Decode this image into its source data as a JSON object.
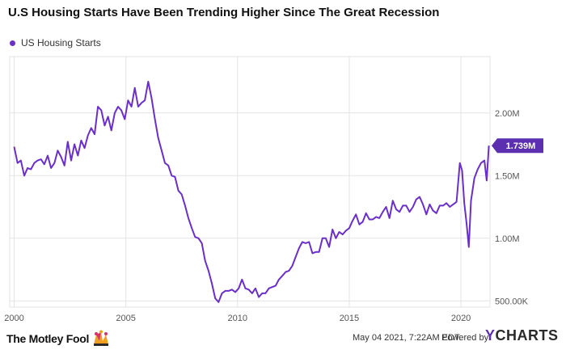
{
  "chart_data": {
    "type": "line",
    "title": "U.S Housing Starts Have Been Trending Higher Since The Great Recession",
    "legend": "US Housing Starts",
    "series": [
      {
        "name": "US Housing Starts",
        "x": [
          2000.0,
          2000.15,
          2000.3,
          2000.45,
          2000.6,
          2000.75,
          2000.9,
          2001.05,
          2001.2,
          2001.35,
          2001.5,
          2001.65,
          2001.8,
          2001.95,
          2002.1,
          2002.25,
          2002.4,
          2002.55,
          2002.7,
          2002.85,
          2003.0,
          2003.15,
          2003.3,
          2003.45,
          2003.6,
          2003.75,
          2003.9,
          2004.05,
          2004.2,
          2004.35,
          2004.5,
          2004.65,
          2004.8,
          2004.95,
          2005.1,
          2005.25,
          2005.4,
          2005.55,
          2005.7,
          2005.85,
          2006.0,
          2006.15,
          2006.3,
          2006.45,
          2006.6,
          2006.75,
          2006.9,
          2007.05,
          2007.2,
          2007.35,
          2007.5,
          2007.65,
          2007.8,
          2007.95,
          2008.1,
          2008.25,
          2008.4,
          2008.55,
          2008.7,
          2008.85,
          2009.0,
          2009.15,
          2009.3,
          2009.45,
          2009.6,
          2009.75,
          2009.9,
          2010.05,
          2010.2,
          2010.35,
          2010.5,
          2010.65,
          2010.8,
          2010.95,
          2011.1,
          2011.25,
          2011.4,
          2011.55,
          2011.7,
          2011.85,
          2012.0,
          2012.15,
          2012.3,
          2012.45,
          2012.6,
          2012.75,
          2012.9,
          2013.05,
          2013.2,
          2013.35,
          2013.5,
          2013.65,
          2013.8,
          2013.95,
          2014.1,
          2014.25,
          2014.4,
          2014.55,
          2014.7,
          2014.85,
          2015.0,
          2015.15,
          2015.3,
          2015.45,
          2015.6,
          2015.75,
          2015.9,
          2016.05,
          2016.2,
          2016.35,
          2016.5,
          2016.65,
          2016.8,
          2016.95,
          2017.1,
          2017.25,
          2017.4,
          2017.55,
          2017.7,
          2017.85,
          2018.0,
          2018.15,
          2018.3,
          2018.45,
          2018.6,
          2018.75,
          2018.9,
          2019.05,
          2019.2,
          2019.35,
          2019.5,
          2019.65,
          2019.8,
          2019.95,
          2020.05,
          2020.15,
          2020.25,
          2020.35,
          2020.45,
          2020.6,
          2020.75,
          2020.9,
          2021.05,
          2021.15,
          2021.25
        ],
        "values": [
          1.73,
          1.6,
          1.62,
          1.5,
          1.56,
          1.55,
          1.6,
          1.62,
          1.63,
          1.59,
          1.66,
          1.56,
          1.6,
          1.7,
          1.65,
          1.58,
          1.77,
          1.62,
          1.75,
          1.66,
          1.78,
          1.72,
          1.82,
          1.88,
          1.83,
          2.05,
          2.02,
          1.9,
          1.97,
          1.86,
          2.0,
          2.05,
          2.02,
          1.95,
          2.1,
          2.05,
          2.2,
          2.05,
          2.08,
          2.1,
          2.25,
          2.12,
          1.95,
          1.8,
          1.7,
          1.6,
          1.58,
          1.5,
          1.49,
          1.38,
          1.35,
          1.26,
          1.16,
          1.08,
          1.01,
          1.0,
          0.96,
          0.82,
          0.74,
          0.64,
          0.52,
          0.49,
          0.56,
          0.58,
          0.58,
          0.59,
          0.57,
          0.6,
          0.67,
          0.6,
          0.59,
          0.56,
          0.6,
          0.53,
          0.56,
          0.56,
          0.6,
          0.61,
          0.62,
          0.67,
          0.7,
          0.73,
          0.74,
          0.78,
          0.85,
          0.92,
          0.97,
          0.96,
          0.97,
          0.88,
          0.89,
          0.89,
          1.0,
          1.0,
          0.93,
          1.07,
          1.0,
          1.05,
          1.03,
          1.06,
          1.08,
          1.14,
          1.19,
          1.11,
          1.13,
          1.2,
          1.15,
          1.15,
          1.17,
          1.16,
          1.21,
          1.25,
          1.16,
          1.3,
          1.23,
          1.21,
          1.26,
          1.26,
          1.21,
          1.25,
          1.31,
          1.33,
          1.27,
          1.19,
          1.27,
          1.22,
          1.2,
          1.26,
          1.26,
          1.28,
          1.25,
          1.27,
          1.29,
          1.6,
          1.54,
          1.28,
          1.12,
          0.93,
          1.3,
          1.48,
          1.55,
          1.6,
          1.62,
          1.46,
          1.739
        ]
      }
    ],
    "xlim": [
      1999.8,
      2021.3
    ],
    "ylim": [
      0.45,
      2.45
    ],
    "x_ticks": [
      {
        "value": 2000,
        "label": "2000"
      },
      {
        "value": 2005,
        "label": "2005"
      },
      {
        "value": 2010,
        "label": "2010"
      },
      {
        "value": 2015,
        "label": "2015"
      },
      {
        "value": 2020,
        "label": "2020"
      }
    ],
    "y_ticks": [
      {
        "value": 2.0,
        "label": "2.00M"
      },
      {
        "value": 1.5,
        "label": "1.50M"
      },
      {
        "value": 1.0,
        "label": "1.00M"
      },
      {
        "value": 0.5,
        "label": "500.00K"
      }
    ],
    "last_value_label": "1.739M",
    "grid": true
  },
  "colors": {
    "line": "#6a2fc9",
    "badge": "#5b2fb0",
    "grid": "#e3e3e3",
    "axis_text": "#555555"
  },
  "footer": {
    "brand": "The Motley Fool",
    "timestamp": "May 04 2021, 7:22AM EDT.",
    "powered_by": "Powered by",
    "provider_mark": "Y",
    "provider_rest": "CHARTS"
  }
}
